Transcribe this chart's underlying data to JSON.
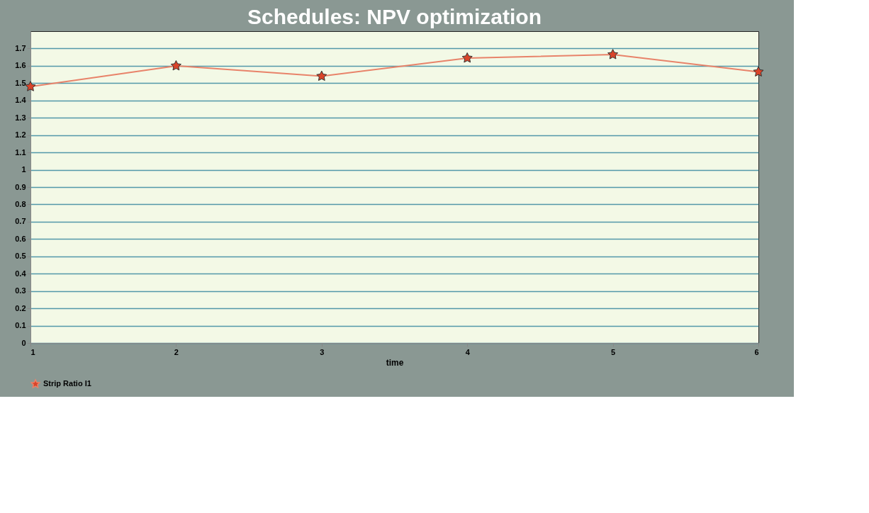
{
  "chart_data": {
    "type": "line",
    "title": "Schedules: NPV optimization",
    "xlabel": "time",
    "x": [
      1,
      2,
      3,
      4,
      5,
      6
    ],
    "series": [
      {
        "name": "Strip Ratio I1",
        "color": "#e8836a",
        "values": [
          1.48,
          1.6,
          1.54,
          1.645,
          1.665,
          1.565
        ]
      }
    ],
    "xlim": [
      1,
      6
    ],
    "xticks": [
      1,
      2,
      3,
      4,
      5,
      6
    ],
    "ylim": [
      0,
      1.8
    ],
    "yticks": [
      0,
      0.1,
      0.2,
      0.3,
      0.4,
      0.5,
      0.6,
      0.7,
      0.8,
      0.9,
      1,
      1.1,
      1.2,
      1.3,
      1.4,
      1.5,
      1.6,
      1.7
    ],
    "grid": "y",
    "legend": "bottom left",
    "marker": "star",
    "line_style": "solid"
  }
}
